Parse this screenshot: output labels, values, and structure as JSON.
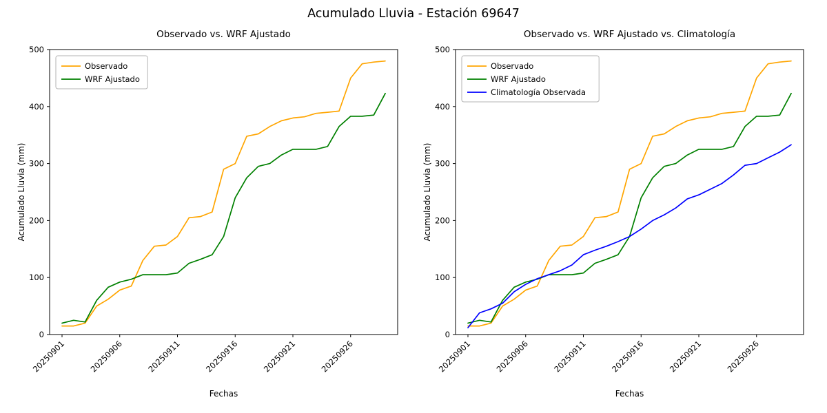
{
  "figure_title": "Acumulado Lluvia - Estación 69647",
  "chart_data": [
    {
      "type": "line",
      "title": "Observado vs. WRF Ajustado",
      "xlabel": "Fechas",
      "ylabel": "Acumulado Lluvia (mm)",
      "ylim": [
        0,
        500
      ],
      "yticks": [
        0,
        100,
        200,
        300,
        400,
        500
      ],
      "xticks": [
        "20250901",
        "20250906",
        "20250911",
        "20250916",
        "20250921",
        "20250926"
      ],
      "legend_position": "upper left",
      "grid": false,
      "x": [
        "20250901",
        "20250902",
        "20250903",
        "20250904",
        "20250905",
        "20250906",
        "20250907",
        "20250908",
        "20250909",
        "20250910",
        "20250911",
        "20250912",
        "20250913",
        "20250914",
        "20250915",
        "20250916",
        "20250917",
        "20250918",
        "20250919",
        "20250920",
        "20250921",
        "20250922",
        "20250923",
        "20250924",
        "20250925",
        "20250926",
        "20250927",
        "20250928",
        "20250929"
      ],
      "series": [
        {
          "name": "Observado",
          "color": "#ffa500",
          "values": [
            15,
            15,
            20,
            50,
            62,
            78,
            85,
            130,
            155,
            157,
            172,
            205,
            207,
            215,
            290,
            300,
            348,
            352,
            365,
            375,
            380,
            382,
            388,
            390,
            392,
            450,
            475,
            478,
            480
          ]
        },
        {
          "name": "WRF Ajustado",
          "color": "#008000",
          "values": [
            20,
            25,
            22,
            60,
            83,
            92,
            97,
            105,
            105,
            105,
            108,
            125,
            132,
            140,
            172,
            240,
            275,
            295,
            300,
            315,
            325,
            325,
            325,
            330,
            365,
            383,
            383,
            385,
            423
          ]
        }
      ]
    },
    {
      "type": "line",
      "title": "Observado vs. WRF Ajustado vs. Climatología",
      "xlabel": "Fechas",
      "ylabel": "Acumulado Lluvia (mm)",
      "ylim": [
        0,
        500
      ],
      "yticks": [
        0,
        100,
        200,
        300,
        400,
        500
      ],
      "xticks": [
        "20250901",
        "20250906",
        "20250911",
        "20250916",
        "20250921",
        "20250926"
      ],
      "legend_position": "upper left",
      "grid": false,
      "x": [
        "20250901",
        "20250902",
        "20250903",
        "20250904",
        "20250905",
        "20250906",
        "20250907",
        "20250908",
        "20250909",
        "20250910",
        "20250911",
        "20250912",
        "20250913",
        "20250914",
        "20250915",
        "20250916",
        "20250917",
        "20250918",
        "20250919",
        "20250920",
        "20250921",
        "20250922",
        "20250923",
        "20250924",
        "20250925",
        "20250926",
        "20250927",
        "20250928",
        "20250929"
      ],
      "series": [
        {
          "name": "Observado",
          "color": "#ffa500",
          "values": [
            15,
            15,
            20,
            50,
            62,
            78,
            85,
            130,
            155,
            157,
            172,
            205,
            207,
            215,
            290,
            300,
            348,
            352,
            365,
            375,
            380,
            382,
            388,
            390,
            392,
            450,
            475,
            478,
            480
          ]
        },
        {
          "name": "WRF Ajustado",
          "color": "#008000",
          "values": [
            20,
            25,
            22,
            60,
            83,
            92,
            97,
            105,
            105,
            105,
            108,
            125,
            132,
            140,
            172,
            240,
            275,
            295,
            300,
            315,
            325,
            325,
            325,
            330,
            365,
            383,
            383,
            385,
            423
          ]
        },
        {
          "name": "Climatología Observada",
          "color": "#0000ff",
          "values": [
            12,
            38,
            45,
            55,
            75,
            88,
            98,
            105,
            112,
            122,
            140,
            148,
            155,
            163,
            172,
            185,
            200,
            210,
            222,
            238,
            245,
            255,
            265,
            280,
            297,
            300,
            310,
            320,
            333
          ]
        }
      ]
    }
  ]
}
